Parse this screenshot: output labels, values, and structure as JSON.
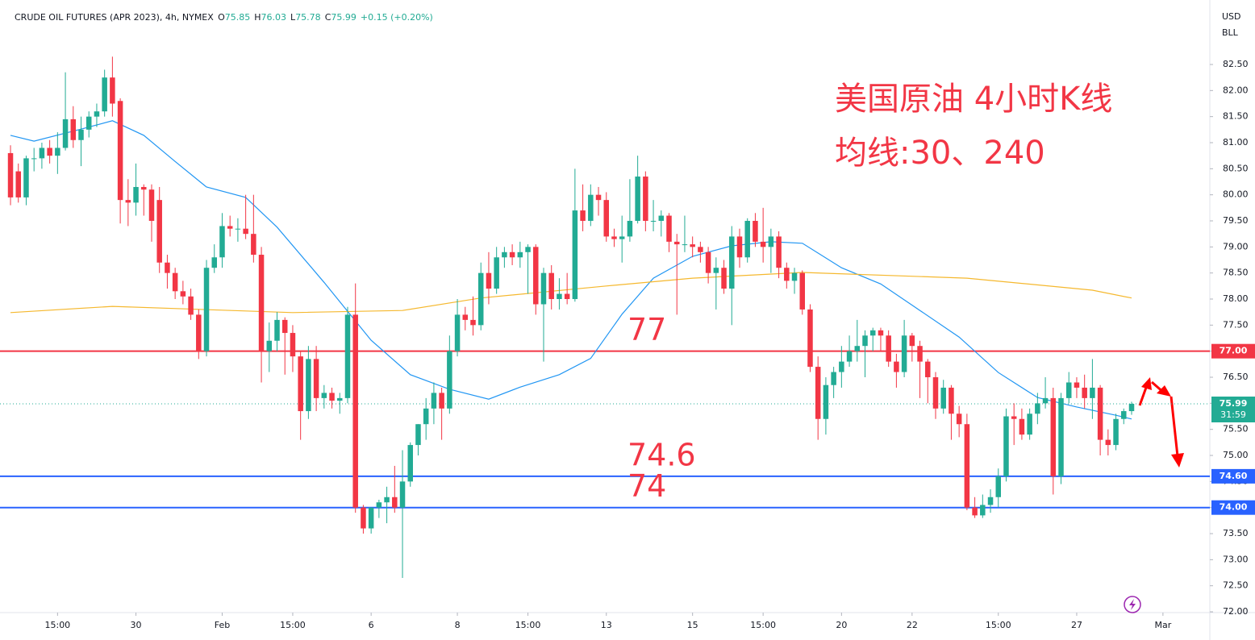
{
  "chart_data": {
    "type": "candlestick",
    "header": {
      "symbol": "CRUDE OIL FUTURES (APR 2023), 4h, NYMEX",
      "ohlc": [
        {
          "key": "O",
          "value": "75.85"
        },
        {
          "key": "H",
          "value": "76.03"
        },
        {
          "key": "L",
          "value": "75.78"
        },
        {
          "key": "C",
          "value": "75.99"
        }
      ],
      "change": "+0.15 (+0.20%)"
    },
    "currency": "USD",
    "unit": "BLL",
    "annotations": [
      "美国原油 4小时K线",
      "均线:30、240"
    ],
    "up_color": "#22ab94",
    "down_color": "#f23645",
    "xlim": [
      -1.34,
      152.98
    ],
    "ylim": [
      71.985,
      83.737
    ],
    "grid": false,
    "xticks": [
      {
        "value": 6,
        "label": "15:00"
      },
      {
        "value": 16,
        "label": "30"
      },
      {
        "value": 27,
        "label": "Feb"
      },
      {
        "value": 36,
        "label": "15:00"
      },
      {
        "value": 46,
        "label": "6"
      },
      {
        "value": 57,
        "label": "8"
      },
      {
        "value": 66,
        "label": "15:00"
      },
      {
        "value": 76,
        "label": "13"
      },
      {
        "value": 87,
        "label": "15"
      },
      {
        "value": 96,
        "label": "15:00"
      },
      {
        "value": 106,
        "label": "20"
      },
      {
        "value": 115,
        "label": "22"
      },
      {
        "value": 126,
        "label": "15:00"
      },
      {
        "value": 136,
        "label": "27"
      },
      {
        "value": 147,
        "label": "Mar"
      }
    ],
    "yticks": [
      {
        "value": 72,
        "label": "72.00"
      },
      {
        "value": 72.5,
        "label": "72.50"
      },
      {
        "value": 73,
        "label": "73.00"
      },
      {
        "value": 73.5,
        "label": "73.50"
      },
      {
        "value": 74,
        "label": "74.00"
      },
      {
        "value": 74.5,
        "label": "74.50"
      },
      {
        "value": 75,
        "label": "75.00"
      },
      {
        "value": 75.5,
        "label": "75.50"
      },
      {
        "value": 76,
        "label": "76.00"
      },
      {
        "value": 76.5,
        "label": "76.50"
      },
      {
        "value": 77,
        "label": "77.00"
      },
      {
        "value": 77.5,
        "label": "77.50"
      },
      {
        "value": 78,
        "label": "78.00"
      },
      {
        "value": 78.5,
        "label": "78.50"
      },
      {
        "value": 79,
        "label": "79.00"
      },
      {
        "value": 79.5,
        "label": "79.50"
      },
      {
        "value": 80,
        "label": "80.00"
      },
      {
        "value": 80.5,
        "label": "80.50"
      },
      {
        "value": 81,
        "label": "81.00"
      },
      {
        "value": 81.5,
        "label": "81.50"
      },
      {
        "value": 82,
        "label": "82.00"
      },
      {
        "value": 82.5,
        "label": "82.50"
      }
    ],
    "hlines": [
      {
        "value": 77,
        "label": "77.00",
        "annotation": "77",
        "color": "#f23645"
      },
      {
        "value": 74.6,
        "label": "74.60",
        "annotation": "74.6",
        "color": "#2962ff"
      },
      {
        "value": 74,
        "label": "74.00",
        "annotation": "74",
        "color": "#2962ff"
      }
    ],
    "last": {
      "value": 75.99,
      "label": "75.99",
      "countdown": "31:59",
      "color": "#22ab94"
    },
    "x": [
      0,
      1,
      2,
      3,
      4,
      5,
      6,
      7,
      8,
      9,
      10,
      11,
      12,
      13,
      14,
      15,
      16,
      17,
      18,
      19,
      20,
      21,
      22,
      23,
      24,
      25,
      26,
      27,
      28,
      29,
      30,
      31,
      32,
      33,
      34,
      35,
      36,
      37,
      38,
      39,
      40,
      41,
      42,
      43,
      44,
      45,
      46,
      47,
      48,
      49,
      50,
      51,
      52,
      53,
      54,
      55,
      56,
      57,
      58,
      59,
      60,
      61,
      62,
      63,
      64,
      65,
      66,
      67,
      68,
      69,
      70,
      71,
      72,
      73,
      74,
      75,
      76,
      77,
      78,
      79,
      80,
      81,
      82,
      83,
      84,
      85,
      86,
      87,
      88,
      89,
      90,
      91,
      92,
      93,
      94,
      95,
      96,
      97,
      98,
      99,
      100,
      101,
      102,
      103,
      104,
      105,
      106,
      107,
      108,
      109,
      110,
      111,
      112,
      113,
      114,
      115,
      116,
      117,
      118,
      119,
      120,
      121,
      122,
      123,
      124,
      125,
      126,
      127,
      128,
      129,
      130,
      131,
      132,
      133,
      134,
      135,
      136,
      137,
      138,
      139,
      140,
      141,
      142,
      143
    ],
    "candles": [
      [
        80.8,
        80.95,
        79.8,
        79.95
      ],
      [
        80.45,
        80.6,
        79.85,
        79.95
      ],
      [
        79.95,
        80.75,
        79.8,
        80.7
      ],
      [
        80.7,
        80.9,
        80.45,
        80.7
      ],
      [
        80.7,
        81.0,
        80.5,
        80.9
      ],
      [
        80.9,
        81.05,
        80.6,
        80.75
      ],
      [
        80.75,
        81.2,
        80.4,
        80.9
      ],
      [
        80.9,
        82.35,
        80.85,
        81.45
      ],
      [
        81.45,
        81.7,
        80.9,
        81.05
      ],
      [
        81.05,
        81.5,
        80.55,
        81.25
      ],
      [
        81.25,
        81.6,
        81.1,
        81.5
      ],
      [
        81.5,
        81.75,
        81.3,
        81.6
      ],
      [
        81.6,
        82.4,
        81.5,
        82.25
      ],
      [
        82.25,
        82.65,
        81.5,
        81.75
      ],
      [
        81.8,
        81.85,
        79.45,
        79.9
      ],
      [
        79.9,
        80.3,
        79.4,
        79.85
      ],
      [
        79.85,
        80.6,
        79.6,
        80.15
      ],
      [
        80.15,
        80.2,
        79.6,
        80.1
      ],
      [
        80.1,
        80.2,
        79.1,
        79.5
      ],
      [
        79.9,
        80.15,
        78.5,
        78.7
      ],
      [
        78.7,
        78.85,
        78.2,
        78.5
      ],
      [
        78.5,
        78.6,
        78.0,
        78.15
      ],
      [
        78.15,
        78.35,
        77.9,
        78.05
      ],
      [
        78.05,
        78.2,
        77.6,
        77.7
      ],
      [
        77.7,
        77.8,
        76.85,
        77.0
      ],
      [
        77.0,
        78.75,
        76.9,
        78.6
      ],
      [
        78.6,
        79.05,
        78.5,
        78.8
      ],
      [
        78.8,
        79.65,
        78.6,
        79.4
      ],
      [
        79.4,
        79.6,
        79.2,
        79.35
      ],
      [
        79.35,
        79.55,
        79.1,
        79.35
      ],
      [
        79.35,
        80.0,
        79.15,
        79.25
      ],
      [
        79.25,
        80.0,
        78.7,
        78.85
      ],
      [
        78.85,
        79.0,
        76.4,
        77.0
      ],
      [
        77.0,
        77.55,
        76.6,
        77.2
      ],
      [
        77.2,
        77.75,
        77.0,
        77.6
      ],
      [
        77.6,
        77.65,
        76.55,
        77.35
      ],
      [
        77.35,
        77.5,
        76.6,
        76.9
      ],
      [
        76.9,
        77.0,
        75.3,
        75.85
      ],
      [
        75.85,
        77.1,
        75.7,
        76.85
      ],
      [
        76.85,
        77.1,
        75.85,
        76.1
      ],
      [
        76.1,
        76.35,
        75.9,
        76.2
      ],
      [
        76.2,
        76.3,
        75.9,
        76.05
      ],
      [
        76.05,
        76.2,
        75.8,
        76.1
      ],
      [
        76.1,
        77.85,
        76.0,
        77.7
      ],
      [
        77.7,
        78.3,
        73.9,
        74.0
      ],
      [
        74.0,
        74.05,
        73.5,
        73.6
      ],
      [
        73.6,
        74.0,
        73.5,
        74.0
      ],
      [
        74.0,
        74.15,
        73.8,
        74.1
      ],
      [
        74.1,
        74.4,
        73.7,
        74.2
      ],
      [
        74.2,
        74.8,
        73.9,
        74.0
      ],
      [
        74.0,
        75.1,
        72.65,
        74.5
      ],
      [
        74.5,
        75.25,
        74.4,
        75.2
      ],
      [
        75.2,
        75.6,
        75.0,
        75.6
      ],
      [
        75.6,
        76.1,
        75.3,
        75.9
      ],
      [
        75.9,
        76.4,
        75.6,
        76.2
      ],
      [
        76.2,
        76.3,
        75.3,
        75.9
      ],
      [
        75.9,
        77.3,
        75.8,
        77.0
      ],
      [
        77.0,
        78.0,
        76.9,
        77.7
      ],
      [
        77.7,
        77.85,
        77.4,
        77.6
      ],
      [
        77.6,
        78.05,
        77.3,
        77.5
      ],
      [
        77.5,
        78.7,
        77.4,
        78.5
      ],
      [
        78.5,
        78.9,
        77.9,
        78.2
      ],
      [
        78.2,
        79.0,
        78.1,
        78.8
      ],
      [
        78.8,
        79.0,
        78.6,
        78.9
      ],
      [
        78.9,
        79.05,
        78.65,
        78.8
      ],
      [
        78.8,
        79.1,
        78.6,
        78.9
      ],
      [
        78.9,
        79.05,
        78.1,
        79.0
      ],
      [
        79.0,
        79.05,
        77.7,
        77.9
      ],
      [
        77.9,
        78.6,
        76.8,
        78.5
      ],
      [
        78.5,
        78.65,
        77.8,
        78.0
      ],
      [
        78.0,
        78.4,
        77.8,
        78.1
      ],
      [
        78.1,
        78.5,
        77.9,
        78.0
      ],
      [
        78.0,
        80.5,
        77.95,
        79.7
      ],
      [
        79.7,
        80.2,
        79.3,
        79.5
      ],
      [
        79.5,
        80.2,
        79.4,
        80.0
      ],
      [
        80.0,
        80.15,
        79.6,
        79.9
      ],
      [
        79.9,
        80.05,
        79.1,
        79.2
      ],
      [
        79.2,
        79.35,
        79.0,
        79.15
      ],
      [
        79.15,
        79.6,
        78.7,
        79.2
      ],
      [
        79.2,
        80.3,
        79.1,
        79.5
      ],
      [
        79.5,
        80.75,
        79.45,
        80.35
      ],
      [
        80.35,
        80.45,
        79.3,
        79.5
      ],
      [
        79.5,
        79.9,
        79.3,
        79.5
      ],
      [
        79.5,
        79.7,
        79.2,
        79.6
      ],
      [
        79.6,
        79.65,
        78.9,
        79.1
      ],
      [
        79.1,
        79.25,
        77.7,
        79.05
      ],
      [
        79.05,
        79.6,
        78.9,
        79.05
      ],
      [
        79.05,
        79.2,
        78.8,
        79.0
      ],
      [
        79.0,
        79.1,
        78.7,
        78.9
      ],
      [
        78.9,
        79.0,
        78.3,
        78.5
      ],
      [
        78.5,
        78.8,
        77.8,
        78.6
      ],
      [
        78.6,
        78.75,
        78.1,
        78.2
      ],
      [
        78.2,
        79.4,
        77.5,
        79.2
      ],
      [
        79.2,
        79.35,
        78.6,
        78.8
      ],
      [
        78.8,
        79.55,
        78.7,
        79.5
      ],
      [
        79.5,
        79.65,
        79.0,
        79.1
      ],
      [
        79.1,
        79.75,
        78.7,
        79.0
      ],
      [
        79.0,
        79.35,
        78.5,
        79.2
      ],
      [
        79.2,
        79.3,
        78.4,
        78.6
      ],
      [
        78.6,
        78.7,
        78.2,
        78.35
      ],
      [
        78.35,
        78.6,
        78.1,
        78.5
      ],
      [
        78.5,
        78.55,
        77.7,
        77.8
      ],
      [
        77.8,
        77.9,
        76.6,
        76.7
      ],
      [
        76.7,
        76.9,
        75.3,
        75.7
      ],
      [
        75.7,
        76.5,
        75.4,
        76.35
      ],
      [
        76.35,
        76.7,
        76.1,
        76.6
      ],
      [
        76.6,
        77.1,
        76.3,
        76.8
      ],
      [
        76.8,
        77.3,
        76.7,
        77.0
      ],
      [
        77.0,
        77.6,
        76.8,
        77.1
      ],
      [
        77.1,
        77.4,
        76.5,
        77.3
      ],
      [
        77.3,
        77.45,
        77.0,
        77.4
      ],
      [
        77.4,
        77.45,
        77.0,
        77.3
      ],
      [
        77.3,
        77.4,
        76.7,
        76.8
      ],
      [
        76.8,
        76.95,
        76.3,
        76.6
      ],
      [
        76.6,
        77.6,
        76.5,
        77.3
      ],
      [
        77.3,
        77.35,
        76.8,
        77.1
      ],
      [
        77.1,
        77.2,
        76.1,
        76.8
      ],
      [
        76.8,
        76.85,
        76.0,
        76.5
      ],
      [
        76.5,
        76.6,
        75.7,
        75.9
      ],
      [
        75.9,
        76.45,
        75.8,
        76.3
      ],
      [
        76.3,
        76.35,
        75.3,
        75.8
      ],
      [
        75.8,
        75.95,
        75.35,
        75.6
      ],
      [
        75.6,
        75.8,
        73.95,
        74.0
      ],
      [
        74.0,
        74.2,
        73.8,
        73.85
      ],
      [
        73.85,
        74.25,
        73.8,
        74.05
      ],
      [
        74.05,
        74.35,
        73.9,
        74.2
      ],
      [
        74.2,
        74.75,
        74.0,
        74.6
      ],
      [
        74.6,
        75.9,
        74.5,
        75.75
      ],
      [
        75.75,
        76.0,
        75.2,
        75.7
      ],
      [
        75.7,
        75.9,
        75.3,
        75.4
      ],
      [
        75.4,
        75.9,
        75.3,
        75.8
      ],
      [
        75.8,
        76.2,
        75.6,
        76.0
      ],
      [
        76.0,
        76.5,
        75.9,
        76.1
      ],
      [
        76.1,
        76.3,
        74.25,
        74.6
      ],
      [
        74.6,
        76.2,
        74.45,
        76.1
      ],
      [
        76.1,
        76.6,
        76.0,
        76.4
      ],
      [
        76.4,
        76.5,
        76.1,
        76.3
      ],
      [
        76.3,
        76.55,
        75.9,
        76.1
      ],
      [
        76.1,
        76.85,
        75.7,
        76.3
      ],
      [
        76.3,
        76.35,
        75.0,
        75.3
      ],
      [
        75.3,
        75.5,
        75.0,
        75.2
      ],
      [
        75.2,
        75.8,
        75.1,
        75.7
      ],
      [
        75.7,
        75.9,
        75.6,
        75.85
      ],
      [
        75.85,
        76.03,
        75.78,
        75.99
      ]
    ],
    "series": [
      {
        "color": "#2196f3",
        "x": [
          0,
          3,
          9,
          13,
          17,
          21,
          25,
          30,
          34,
          40,
          46,
          51,
          56,
          61,
          65,
          70,
          74,
          78,
          82,
          87,
          92,
          97,
          101,
          106,
          111,
          116,
          121,
          126,
          131,
          136,
          141,
          143
        ],
        "values": [
          81.14,
          81.03,
          81.26,
          81.42,
          81.14,
          80.64,
          80.15,
          79.95,
          79.38,
          78.32,
          77.21,
          76.55,
          76.27,
          76.08,
          76.31,
          76.55,
          76.86,
          77.71,
          78.4,
          78.82,
          79.02,
          79.1,
          79.07,
          78.6,
          78.29,
          77.78,
          77.27,
          76.59,
          76.11,
          75.93,
          75.77,
          75.7
        ]
      },
      {
        "color": "#f5b82e",
        "x": [
          0,
          13,
          36,
          50,
          60,
          76,
          87,
          101,
          122,
          138,
          143
        ],
        "values": [
          77.74,
          77.86,
          77.74,
          77.78,
          78.02,
          78.25,
          78.4,
          78.51,
          78.4,
          78.17,
          78.02
        ]
      }
    ]
  }
}
